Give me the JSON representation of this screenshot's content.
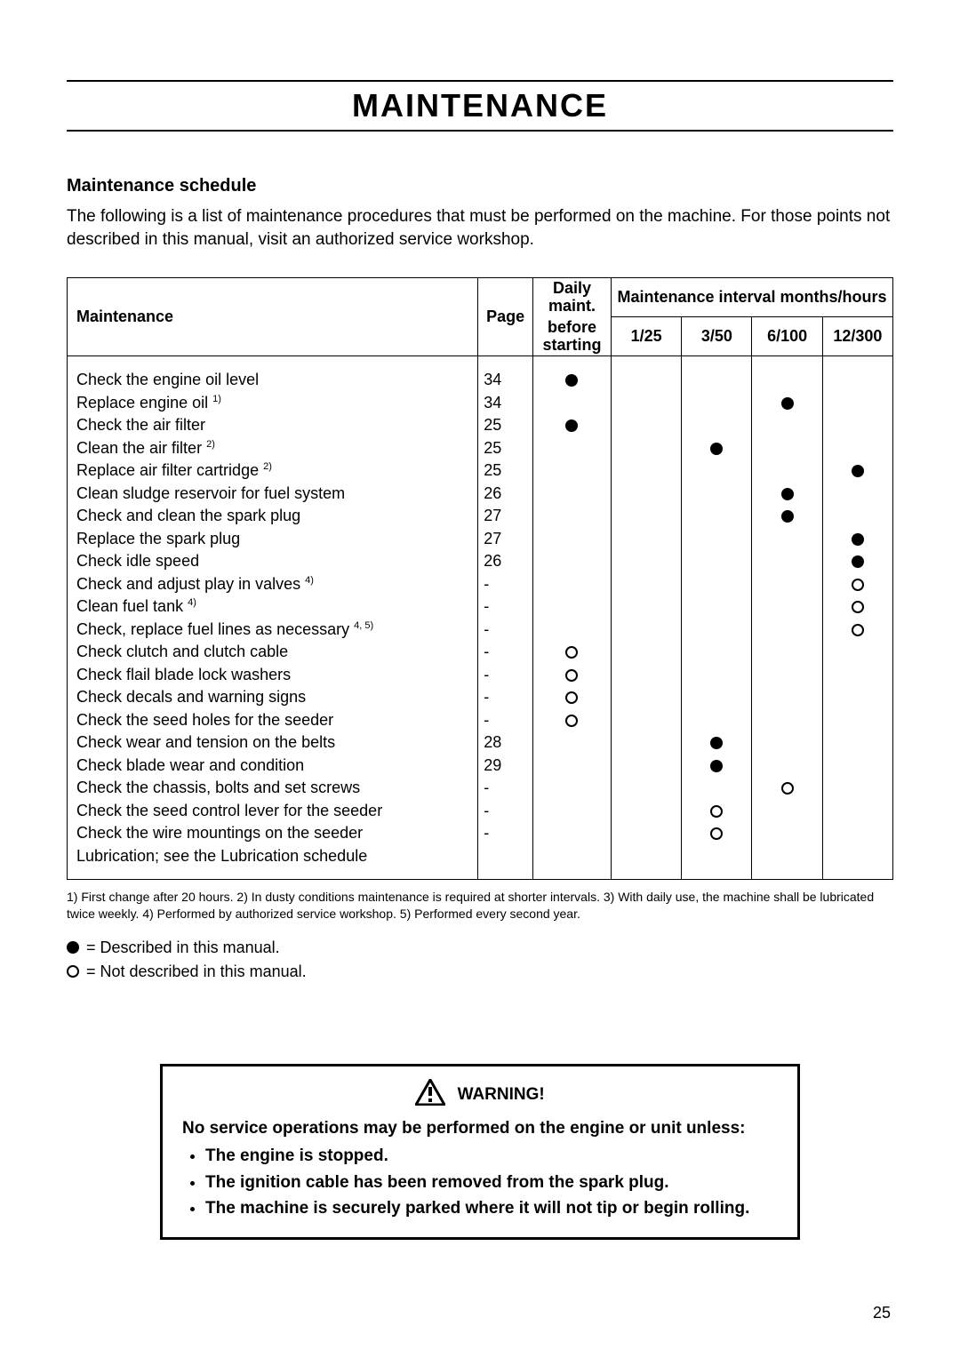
{
  "page_title": "MAINTENANCE",
  "subheading": "Maintenance schedule",
  "intro": "The following is a list of maintenance procedures that must be performed on the machine. For those points not described in this manual, visit an authorized service workshop.",
  "table": {
    "headers": {
      "maintenance": "Maintenance",
      "page": "Page",
      "daily_top": "Daily maint.",
      "daily_bottom": "before starting",
      "interval_group": "Maintenance interval months/hours",
      "c1": "1/25",
      "c2": "3/50",
      "c3": "6/100",
      "c4": "12/300"
    },
    "rows": [
      {
        "task": "Check the engine oil level",
        "sup": "",
        "page": "34",
        "marks": [
          "filled",
          "",
          "",
          "",
          ""
        ]
      },
      {
        "task": "Replace engine oil",
        "sup": "1)",
        "page": "34",
        "marks": [
          "",
          "",
          "",
          "filled",
          ""
        ]
      },
      {
        "task": "Check the air filter",
        "sup": "",
        "page": "25",
        "marks": [
          "filled",
          "",
          "",
          "",
          ""
        ]
      },
      {
        "task": "Clean the air filter",
        "sup": "2)",
        "page": "25",
        "marks": [
          "",
          "",
          "filled",
          "",
          ""
        ]
      },
      {
        "task": "Replace air filter cartridge",
        "sup": "2)",
        "page": "25",
        "marks": [
          "",
          "",
          "",
          "",
          "filled"
        ]
      },
      {
        "task": "Clean sludge reservoir for fuel system",
        "sup": "",
        "page": "26",
        "marks": [
          "",
          "",
          "",
          "filled",
          ""
        ]
      },
      {
        "task": "Check and clean the spark plug",
        "sup": "",
        "page": "27",
        "marks": [
          "",
          "",
          "",
          "filled",
          ""
        ]
      },
      {
        "task": "Replace the spark plug",
        "sup": "",
        "page": "27",
        "marks": [
          "",
          "",
          "",
          "",
          "filled"
        ]
      },
      {
        "task": "Check idle speed",
        "sup": "",
        "page": "26",
        "marks": [
          "",
          "",
          "",
          "",
          "filled"
        ]
      },
      {
        "task": "Check and adjust play in valves",
        "sup": "4)",
        "page": "-",
        "marks": [
          "",
          "",
          "",
          "",
          "open"
        ]
      },
      {
        "task": "Clean fuel tank",
        "sup": "4)",
        "page": "-",
        "marks": [
          "",
          "",
          "",
          "",
          "open"
        ]
      },
      {
        "task": "Check, replace fuel lines as necessary",
        "sup": "4, 5)",
        "page": "-",
        "marks": [
          "",
          "",
          "",
          "",
          "open"
        ]
      },
      {
        "task": "Check clutch and clutch cable",
        "sup": "",
        "page": "-",
        "marks": [
          "open",
          "",
          "",
          "",
          ""
        ]
      },
      {
        "task": "Check flail blade lock washers",
        "sup": "",
        "page": "-",
        "marks": [
          "open",
          "",
          "",
          "",
          ""
        ]
      },
      {
        "task": "Check decals and warning signs",
        "sup": "",
        "page": "-",
        "marks": [
          "open",
          "",
          "",
          "",
          ""
        ]
      },
      {
        "task": "Check the seed holes for the seeder",
        "sup": "",
        "page": "-",
        "marks": [
          "open",
          "",
          "",
          "",
          ""
        ]
      },
      {
        "task": "Check wear and tension on the belts",
        "sup": "",
        "page": "28",
        "marks": [
          "",
          "",
          "filled",
          "",
          ""
        ]
      },
      {
        "task": "Check blade wear and condition",
        "sup": "",
        "page": "29",
        "marks": [
          "",
          "",
          "filled",
          "",
          ""
        ]
      },
      {
        "task": "Check the chassis, bolts and set screws",
        "sup": "",
        "page": "-",
        "marks": [
          "",
          "",
          "",
          "open",
          ""
        ]
      },
      {
        "task": "Check the seed control lever for the seeder",
        "sup": "",
        "page": "-",
        "marks": [
          "",
          "",
          "open",
          "",
          ""
        ]
      },
      {
        "task": "Check the wire mountings on the seeder",
        "sup": "",
        "page": "-",
        "marks": [
          "",
          "",
          "open",
          "",
          ""
        ]
      },
      {
        "task": "Lubrication; see the Lubrication schedule",
        "sup": "",
        "page": "",
        "marks": [
          "",
          "",
          "",
          "",
          ""
        ]
      }
    ]
  },
  "footnotes": "1) First change after 20 hours. 2) In dusty conditions maintenance is required at shorter intervals. 3) With daily use, the machine shall be lubricated twice weekly. 4) Performed by authorized service workshop. 5) Performed every second year.",
  "legend": {
    "filled": "= Described in this manual.",
    "open": "= Not described in this manual."
  },
  "warning": {
    "title": "WARNING!",
    "lead": "No service operations may be performed on the engine or unit unless:",
    "items": [
      "The engine is stopped.",
      "The ignition cable has been removed from the spark plug.",
      "The machine is securely parked where it will not tip or begin rolling."
    ]
  },
  "page_number": "25"
}
